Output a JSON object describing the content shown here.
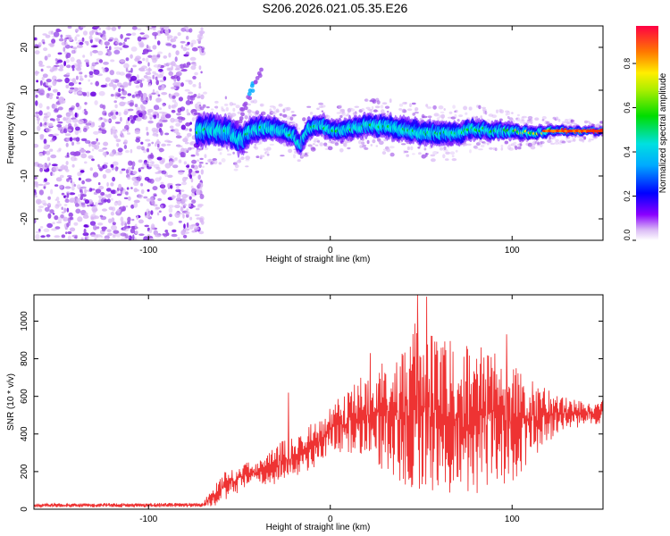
{
  "title": "S206.2026.021.05.35.E26",
  "colors": {
    "snr_line": "#ee3333",
    "scatter_low": "#d9b8f5",
    "scatter_mid": "#9a4be6",
    "scatter_high": "#6a00e0",
    "ridge_palette": [
      "#6a00ff",
      "#0000ff",
      "#00aaff",
      "#00e5e5",
      "#00dd00",
      "#ffee00",
      "#ff6600",
      "#ff0033"
    ]
  },
  "chart_data": [
    {
      "id": "spectrogram",
      "type": "heatmap",
      "title": "",
      "xlabel": "Height of straight line (km)",
      "ylabel": "Frequency (Hz)",
      "xlim": [
        -163,
        150
      ],
      "ylim": [
        -25,
        25
      ],
      "xticks": [
        -100,
        0,
        100
      ],
      "yticks": [
        -20,
        -10,
        0,
        10,
        20
      ],
      "xtick_labels": [
        "-100",
        "0",
        "100"
      ],
      "ytick_labels": [
        "-20",
        "-10",
        "0",
        "10",
        "20"
      ],
      "description_series": {
        "noise_region_x": [
          -163,
          -73
        ],
        "signal_start_x": -73,
        "ridge_center_freq_hz": [
          [
            -73,
            0.5
          ],
          [
            -65,
            1.0
          ],
          [
            -55,
            0.0
          ],
          [
            -50,
            -2.0
          ],
          [
            -45,
            0.0
          ],
          [
            -40,
            1.0
          ],
          [
            -30,
            1.0
          ],
          [
            -20,
            -0.5
          ],
          [
            -17,
            -3.0
          ],
          [
            -12,
            1.0
          ],
          [
            -5,
            2.0
          ],
          [
            0,
            0.5
          ],
          [
            10,
            1.0
          ],
          [
            20,
            2.0
          ],
          [
            30,
            1.5
          ],
          [
            40,
            1.0
          ],
          [
            50,
            0.0
          ],
          [
            60,
            0.0
          ],
          [
            70,
            0.0
          ],
          [
            80,
            1.0
          ],
          [
            90,
            0.5
          ],
          [
            100,
            0.5
          ],
          [
            110,
            0.0
          ],
          [
            120,
            0.5
          ],
          [
            130,
            0.5
          ],
          [
            140,
            0.5
          ],
          [
            150,
            0.5
          ]
        ],
        "ridge_halfwidth_hz": [
          [
            -73,
            4.0
          ],
          [
            -50,
            3.5
          ],
          [
            -20,
            2.5
          ],
          [
            0,
            2.5
          ],
          [
            40,
            3.0
          ],
          [
            60,
            3.0
          ],
          [
            100,
            2.0
          ],
          [
            130,
            1.2
          ],
          [
            150,
            1.0
          ]
        ],
        "ridge_peak_amplitude": [
          [
            -73,
            0.35
          ],
          [
            -40,
            0.35
          ],
          [
            -20,
            0.45
          ],
          [
            0,
            0.5
          ],
          [
            40,
            0.5
          ],
          [
            80,
            0.55
          ],
          [
            110,
            0.65
          ],
          [
            125,
            0.9
          ],
          [
            150,
            0.95
          ]
        ],
        "spur": {
          "x": [
            -52,
            -38
          ],
          "freq_hz": [
            1,
            15
          ]
        }
      }
    },
    {
      "id": "colorbar",
      "type": "colorbar",
      "label": "Normalized spectral amplitude",
      "range": [
        0.0,
        0.97
      ],
      "ticks": [
        0.0,
        0.2,
        0.4,
        0.6,
        0.8
      ],
      "tick_labels": [
        "0.0",
        "0.2",
        "0.4",
        "0.6",
        "0.8"
      ]
    },
    {
      "id": "snr",
      "type": "line",
      "title": "",
      "xlabel": "Height of straight line (km)",
      "ylabel": "SNR (10 * v/v)",
      "xlim": [
        -163,
        150
      ],
      "ylim": [
        0,
        1140
      ],
      "xticks": [
        -100,
        0,
        100
      ],
      "yticks": [
        0,
        200,
        400,
        600,
        800,
        1000
      ],
      "xtick_labels": [
        "-100",
        "0",
        "100"
      ],
      "ytick_labels": [
        "0",
        "200",
        "400",
        "600",
        "800",
        "1000"
      ],
      "envelope": {
        "x": [
          -163,
          -70,
          -62,
          -55,
          -45,
          -35,
          -25,
          -18,
          -10,
          -5,
          0,
          10,
          20,
          30,
          40,
          45,
          50,
          60,
          70,
          80,
          90,
          100,
          110,
          120,
          130,
          140,
          150
        ],
        "low": [
          10,
          10,
          20,
          60,
          120,
          120,
          150,
          180,
          200,
          260,
          300,
          300,
          280,
          200,
          120,
          100,
          80,
          60,
          80,
          80,
          100,
          140,
          260,
          360,
          420,
          440,
          460
        ],
        "high": [
          30,
          35,
          160,
          230,
          250,
          290,
          380,
          390,
          470,
          480,
          560,
          640,
          740,
          800,
          900,
          1000,
          960,
          920,
          880,
          860,
          880,
          780,
          700,
          640,
          600,
          580,
          580
        ]
      },
      "spikes": [
        {
          "x": -23,
          "y": 620
        },
        {
          "x": 22,
          "y": 830
        },
        {
          "x": 48,
          "y": 1140
        },
        {
          "x": 53,
          "y": 1130
        },
        {
          "x": 97,
          "y": 930
        }
      ]
    }
  ]
}
